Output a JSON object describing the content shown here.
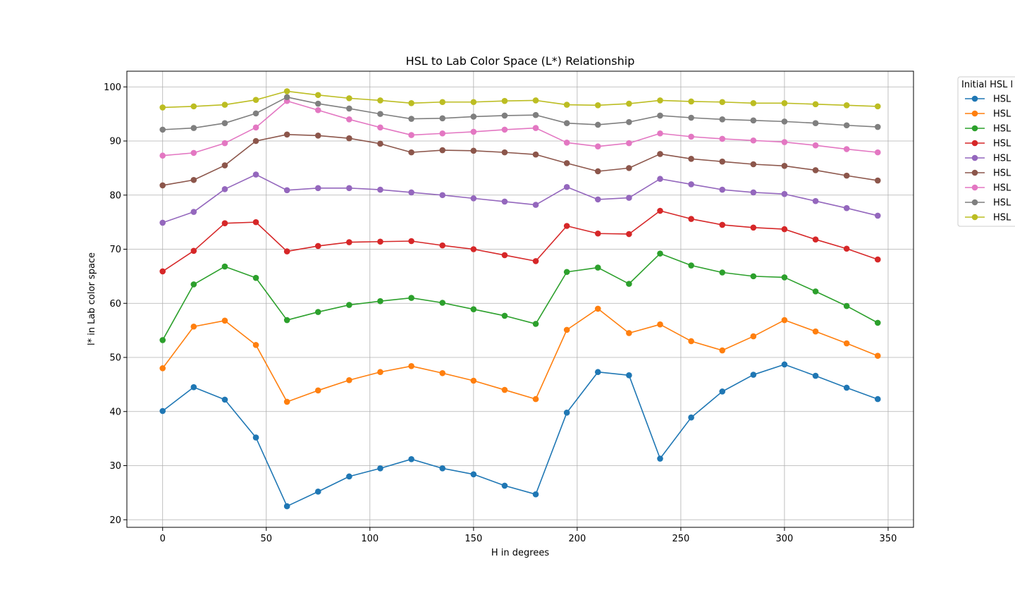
{
  "chart_data": {
    "type": "line",
    "title": "HSL to Lab Color Space (L*) Relationship",
    "xlabel": "H in degrees",
    "ylabel": "l* in Lab color space",
    "xlim": [
      -17.25,
      362.25
    ],
    "ylim": [
      18.6,
      102.9
    ],
    "xticks": [
      0,
      50,
      100,
      150,
      200,
      250,
      300,
      350
    ],
    "yticks": [
      20,
      30,
      40,
      50,
      60,
      70,
      80,
      90,
      100
    ],
    "grid": true,
    "legend": {
      "title": "Initial HSL l",
      "placement": "outside-right",
      "entries": [
        "HSL",
        "HSL",
        "HSL",
        "HSL",
        "HSL",
        "HSL",
        "HSL",
        "HSL",
        "HSL"
      ]
    },
    "x": [
      0,
      15,
      30,
      45,
      60,
      75,
      90,
      105,
      120,
      135,
      150,
      165,
      180,
      195,
      210,
      225,
      240,
      255,
      270,
      285,
      300,
      315,
      330,
      345
    ],
    "series": [
      {
        "color": "#1f77b4",
        "values": [
          40.1,
          44.5,
          42.2,
          35.2,
          22.5,
          25.2,
          28.0,
          29.5,
          31.2,
          29.5,
          28.4,
          26.3,
          24.7,
          39.8,
          47.3,
          46.7,
          31.3,
          38.9,
          43.7,
          46.8,
          48.7,
          46.6,
          44.4,
          42.3
        ]
      },
      {
        "color": "#ff7f0e",
        "values": [
          48.0,
          55.7,
          56.8,
          52.3,
          41.8,
          43.9,
          45.8,
          47.3,
          48.4,
          47.1,
          45.7,
          44.0,
          42.3,
          55.1,
          59.0,
          54.5,
          56.1,
          53.0,
          51.3,
          53.9,
          56.9,
          54.8,
          52.6,
          50.3
        ]
      },
      {
        "color": "#2ca02c",
        "values": [
          53.2,
          63.5,
          66.8,
          64.7,
          56.9,
          58.4,
          59.7,
          60.4,
          61.0,
          60.1,
          58.9,
          57.7,
          56.2,
          65.8,
          66.6,
          63.6,
          69.2,
          67.0,
          65.7,
          65.0,
          64.8,
          62.2,
          59.5,
          56.4
        ]
      },
      {
        "color": "#d62728",
        "values": [
          65.9,
          69.7,
          74.8,
          75.0,
          69.6,
          70.6,
          71.3,
          71.4,
          71.5,
          70.7,
          70.0,
          68.9,
          67.8,
          74.3,
          72.9,
          72.8,
          77.1,
          75.6,
          74.5,
          74.0,
          73.7,
          71.8,
          70.1,
          68.1
        ]
      },
      {
        "color": "#9467bd",
        "values": [
          74.9,
          76.9,
          81.1,
          83.8,
          80.9,
          81.3,
          81.3,
          81.0,
          80.5,
          80.0,
          79.4,
          78.8,
          78.2,
          81.5,
          79.2,
          79.5,
          83.0,
          82.0,
          81.0,
          80.5,
          80.2,
          78.9,
          77.6,
          76.2
        ]
      },
      {
        "color": "#8c564b",
        "values": [
          81.8,
          82.8,
          85.5,
          90.0,
          91.2,
          91.0,
          90.5,
          89.5,
          87.9,
          88.3,
          88.2,
          87.9,
          87.5,
          85.9,
          84.4,
          85.0,
          87.6,
          86.7,
          86.2,
          85.7,
          85.4,
          84.6,
          83.6,
          82.7
        ]
      },
      {
        "color": "#e377c2",
        "values": [
          87.3,
          87.8,
          89.6,
          92.5,
          97.4,
          95.7,
          94.0,
          92.5,
          91.1,
          91.4,
          91.7,
          92.1,
          92.4,
          89.7,
          89.0,
          89.6,
          91.4,
          90.8,
          90.4,
          90.1,
          89.8,
          89.2,
          88.5,
          87.9
        ]
      },
      {
        "color": "#7f7f7f",
        "values": [
          92.1,
          92.4,
          93.3,
          95.1,
          98.1,
          96.9,
          96.0,
          95.0,
          94.1,
          94.2,
          94.5,
          94.7,
          94.8,
          93.3,
          93.0,
          93.5,
          94.7,
          94.3,
          94.0,
          93.8,
          93.6,
          93.3,
          92.9,
          92.6
        ]
      },
      {
        "color": "#bcbd22",
        "values": [
          96.2,
          96.4,
          96.7,
          97.6,
          99.2,
          98.5,
          97.9,
          97.5,
          97.0,
          97.2,
          97.2,
          97.4,
          97.5,
          96.7,
          96.6,
          96.9,
          97.5,
          97.3,
          97.2,
          97.0,
          97.0,
          96.8,
          96.6,
          96.4
        ]
      }
    ]
  }
}
